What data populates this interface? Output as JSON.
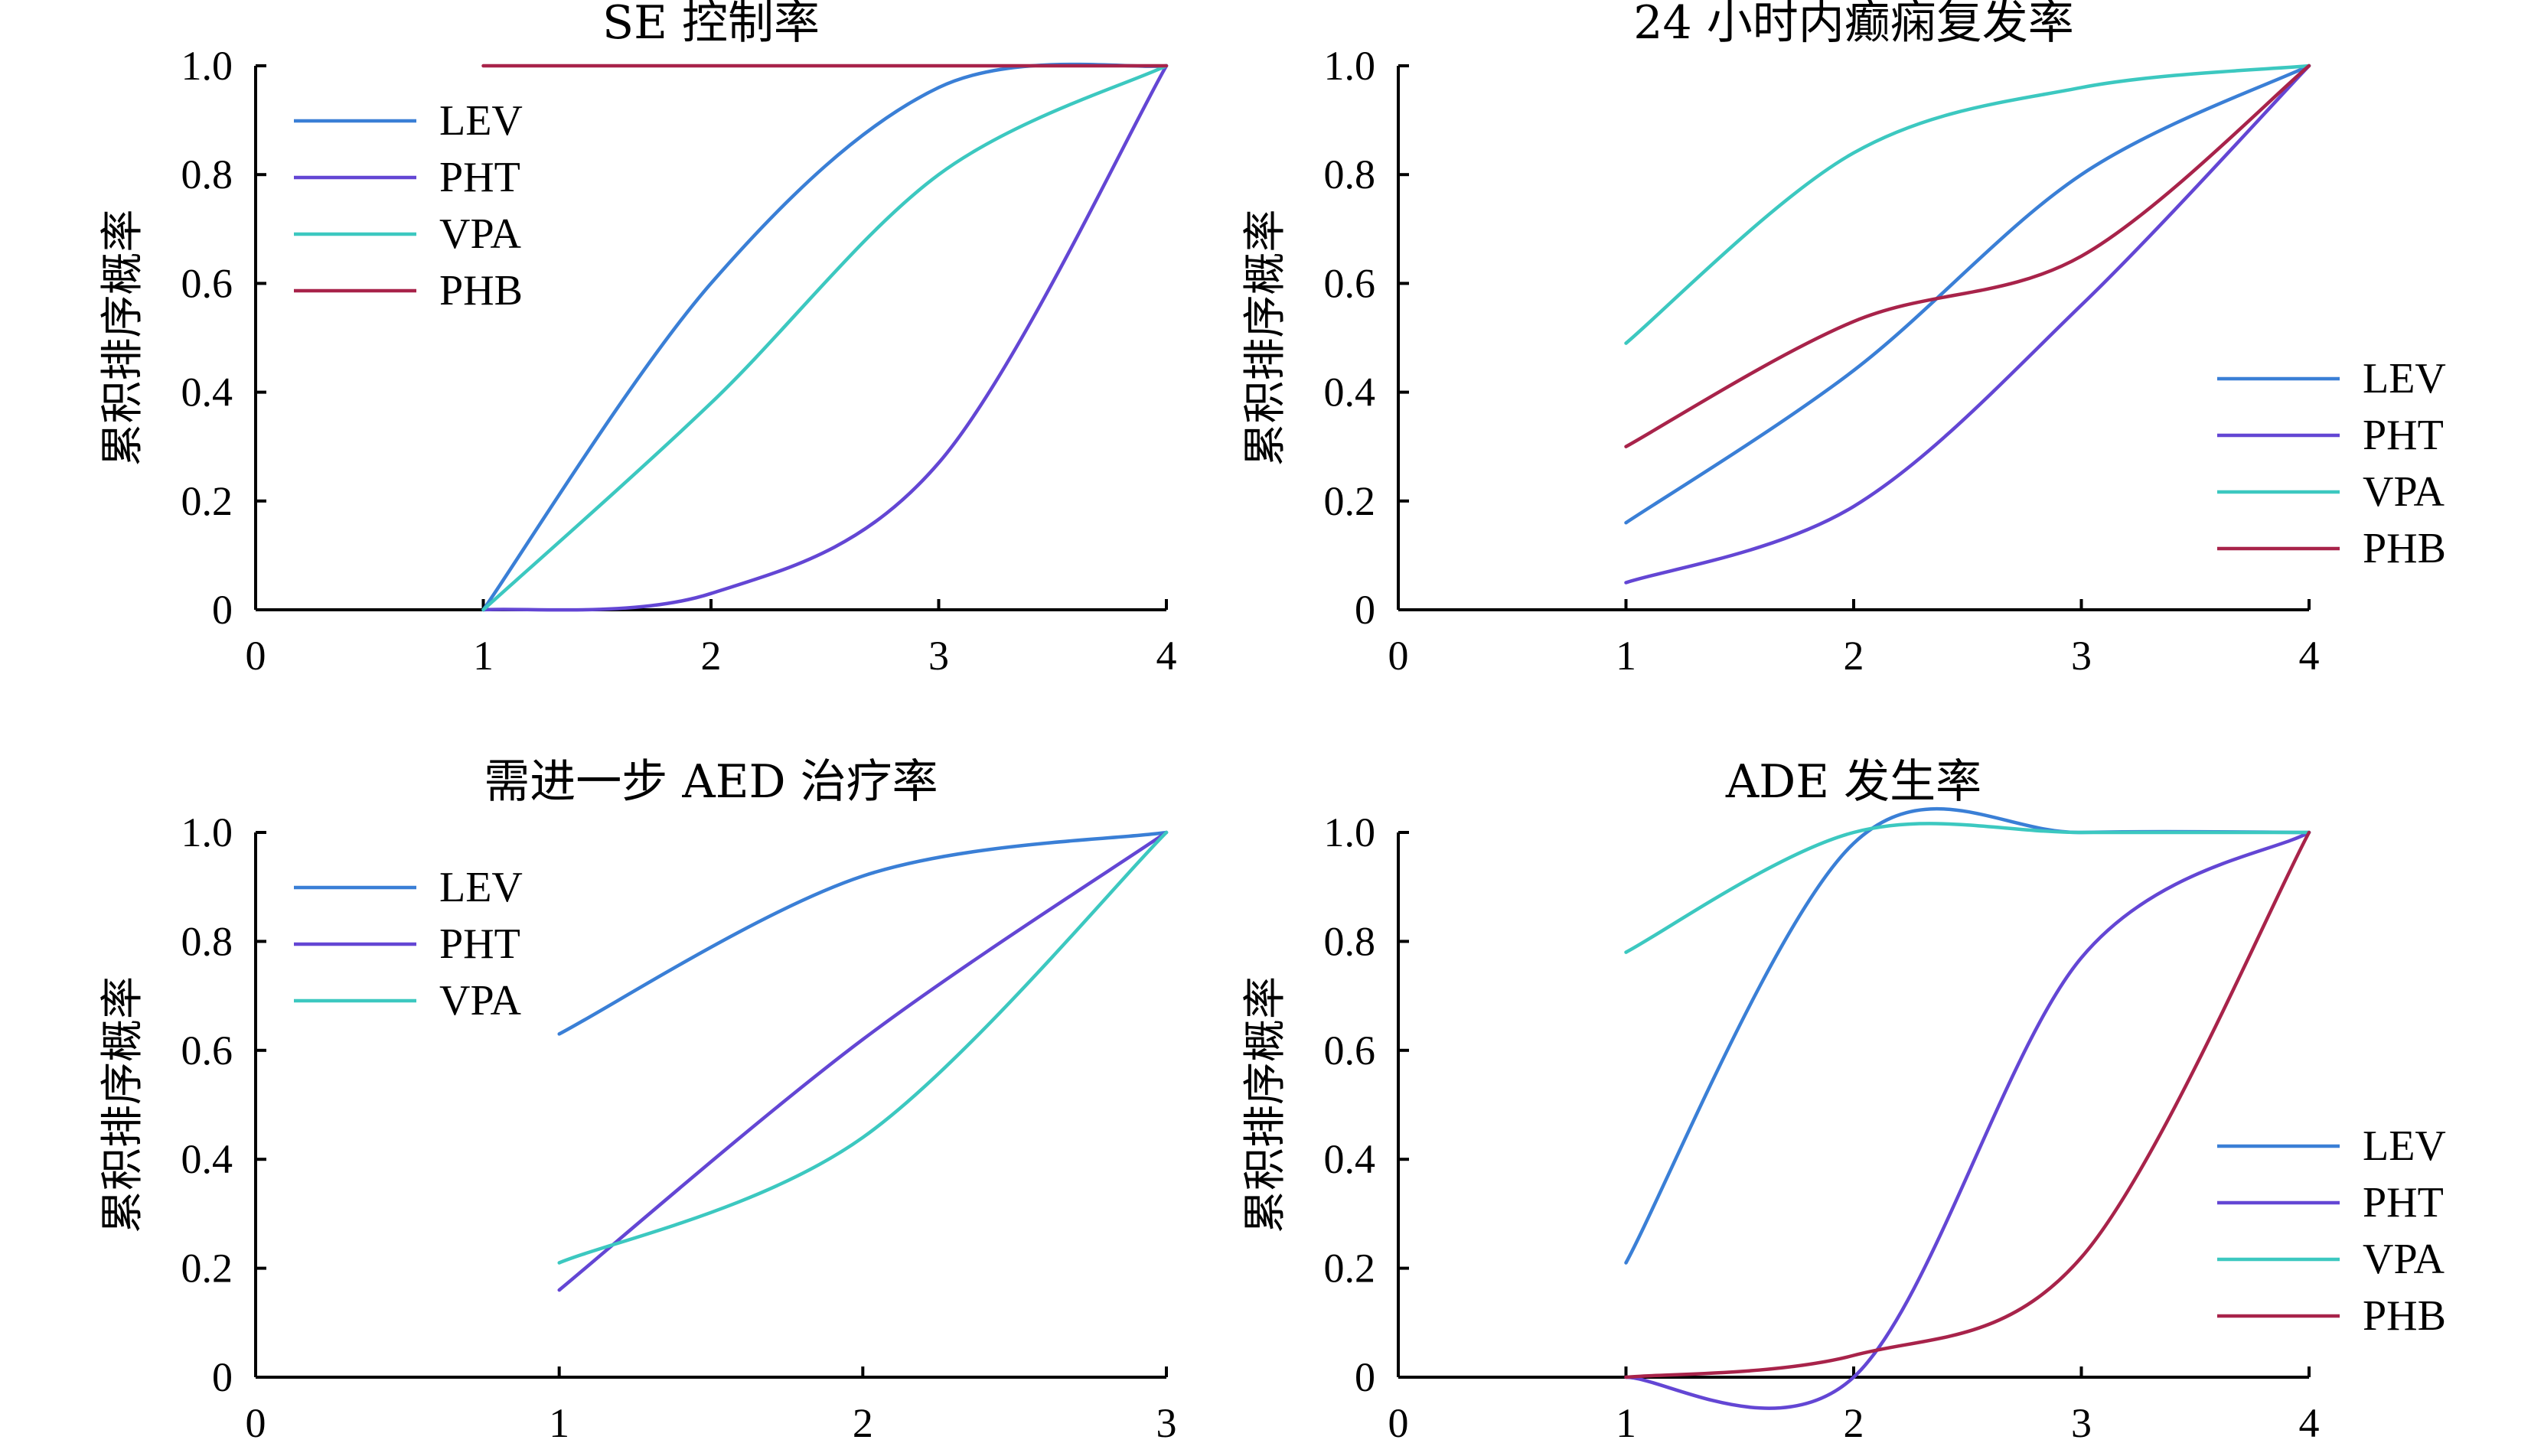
{
  "colors": {
    "LEV": "#3a7fd6",
    "PHT": "#6346d4",
    "VPA": "#3cc8c0",
    "PHB": "#a8234a"
  },
  "chart_data": [
    {
      "type": "line",
      "title": "SE 控制率",
      "ylabel": "累积排序概率",
      "xlabel": "",
      "xlim": [
        0,
        4
      ],
      "ylim": [
        0,
        1
      ],
      "xticks": [
        "0",
        "1",
        "2",
        "3",
        "4"
      ],
      "yticks": [
        "0",
        "0.2",
        "0.4",
        "0.6",
        "0.8",
        "1.0"
      ],
      "legend_position": "top-left",
      "series": [
        {
          "name": "LEV",
          "x": [
            1,
            2,
            3,
            4
          ],
          "y": [
            0.0,
            0.6,
            0.96,
            1.0
          ]
        },
        {
          "name": "PHT",
          "x": [
            1,
            2,
            3,
            4
          ],
          "y": [
            0.0,
            0.03,
            0.27,
            1.0
          ]
        },
        {
          "name": "VPA",
          "x": [
            1,
            2,
            3,
            4
          ],
          "y": [
            0.0,
            0.38,
            0.8,
            1.0
          ]
        },
        {
          "name": "PHB",
          "x": [
            1,
            2,
            3,
            4
          ],
          "y": [
            1.0,
            1.0,
            1.0,
            1.0
          ]
        }
      ]
    },
    {
      "type": "line",
      "title": "24 小时内癫痫复发率",
      "ylabel": "累积排序概率",
      "xlabel": "",
      "xlim": [
        0,
        4
      ],
      "ylim": [
        0,
        1
      ],
      "xticks": [
        "0",
        "1",
        "2",
        "3",
        "4"
      ],
      "yticks": [
        "0",
        "0.2",
        "0.4",
        "0.6",
        "0.8",
        "1.0"
      ],
      "legend_position": "bottom-right",
      "series": [
        {
          "name": "LEV",
          "x": [
            1,
            2,
            3,
            4
          ],
          "y": [
            0.16,
            0.44,
            0.8,
            1.0
          ]
        },
        {
          "name": "PHT",
          "x": [
            1,
            2,
            3,
            4
          ],
          "y": [
            0.05,
            0.19,
            0.56,
            1.0
          ]
        },
        {
          "name": "VPA",
          "x": [
            1,
            2,
            3,
            4
          ],
          "y": [
            0.49,
            0.84,
            0.96,
            1.0
          ]
        },
        {
          "name": "PHB",
          "x": [
            1,
            2,
            3,
            4
          ],
          "y": [
            0.3,
            0.53,
            0.65,
            1.0
          ]
        }
      ]
    },
    {
      "type": "line",
      "title": "需进一步 AED 治疗率",
      "ylabel": "累积排序概率",
      "xlabel": "",
      "xlim": [
        0,
        3
      ],
      "ylim": [
        0,
        1
      ],
      "xticks": [
        "0",
        "1",
        "2",
        "3"
      ],
      "yticks": [
        "0",
        "0.2",
        "0.4",
        "0.6",
        "0.8",
        "1.0"
      ],
      "legend_position": "top-left",
      "series": [
        {
          "name": "LEV",
          "x": [
            1,
            2,
            3
          ],
          "y": [
            0.63,
            0.92,
            1.0
          ]
        },
        {
          "name": "PHT",
          "x": [
            1,
            2,
            3
          ],
          "y": [
            0.16,
            0.62,
            1.0
          ]
        },
        {
          "name": "VPA",
          "x": [
            1,
            2,
            3
          ],
          "y": [
            0.21,
            0.44,
            1.0
          ]
        }
      ]
    },
    {
      "type": "line",
      "title": "ADE 发生率",
      "ylabel": "累积排序概率",
      "xlabel": "",
      "xlim": [
        0,
        4
      ],
      "ylim": [
        0,
        1
      ],
      "xticks": [
        "0",
        "1",
        "2",
        "3",
        "4"
      ],
      "yticks": [
        "0",
        "0.2",
        "0.4",
        "0.6",
        "0.8",
        "1.0"
      ],
      "legend_position": "bottom-right",
      "series": [
        {
          "name": "LEV",
          "x": [
            1,
            2,
            3,
            4
          ],
          "y": [
            0.21,
            0.98,
            1.0,
            1.0
          ]
        },
        {
          "name": "PHT",
          "x": [
            1,
            2,
            3,
            4
          ],
          "y": [
            0.0,
            0.0,
            0.77,
            1.0
          ]
        },
        {
          "name": "VPA",
          "x": [
            1,
            2,
            3,
            4
          ],
          "y": [
            0.78,
            1.0,
            1.0,
            1.0
          ]
        },
        {
          "name": "PHB",
          "x": [
            1,
            2,
            3,
            4
          ],
          "y": [
            0.0,
            0.04,
            0.22,
            1.0
          ]
        }
      ]
    }
  ]
}
